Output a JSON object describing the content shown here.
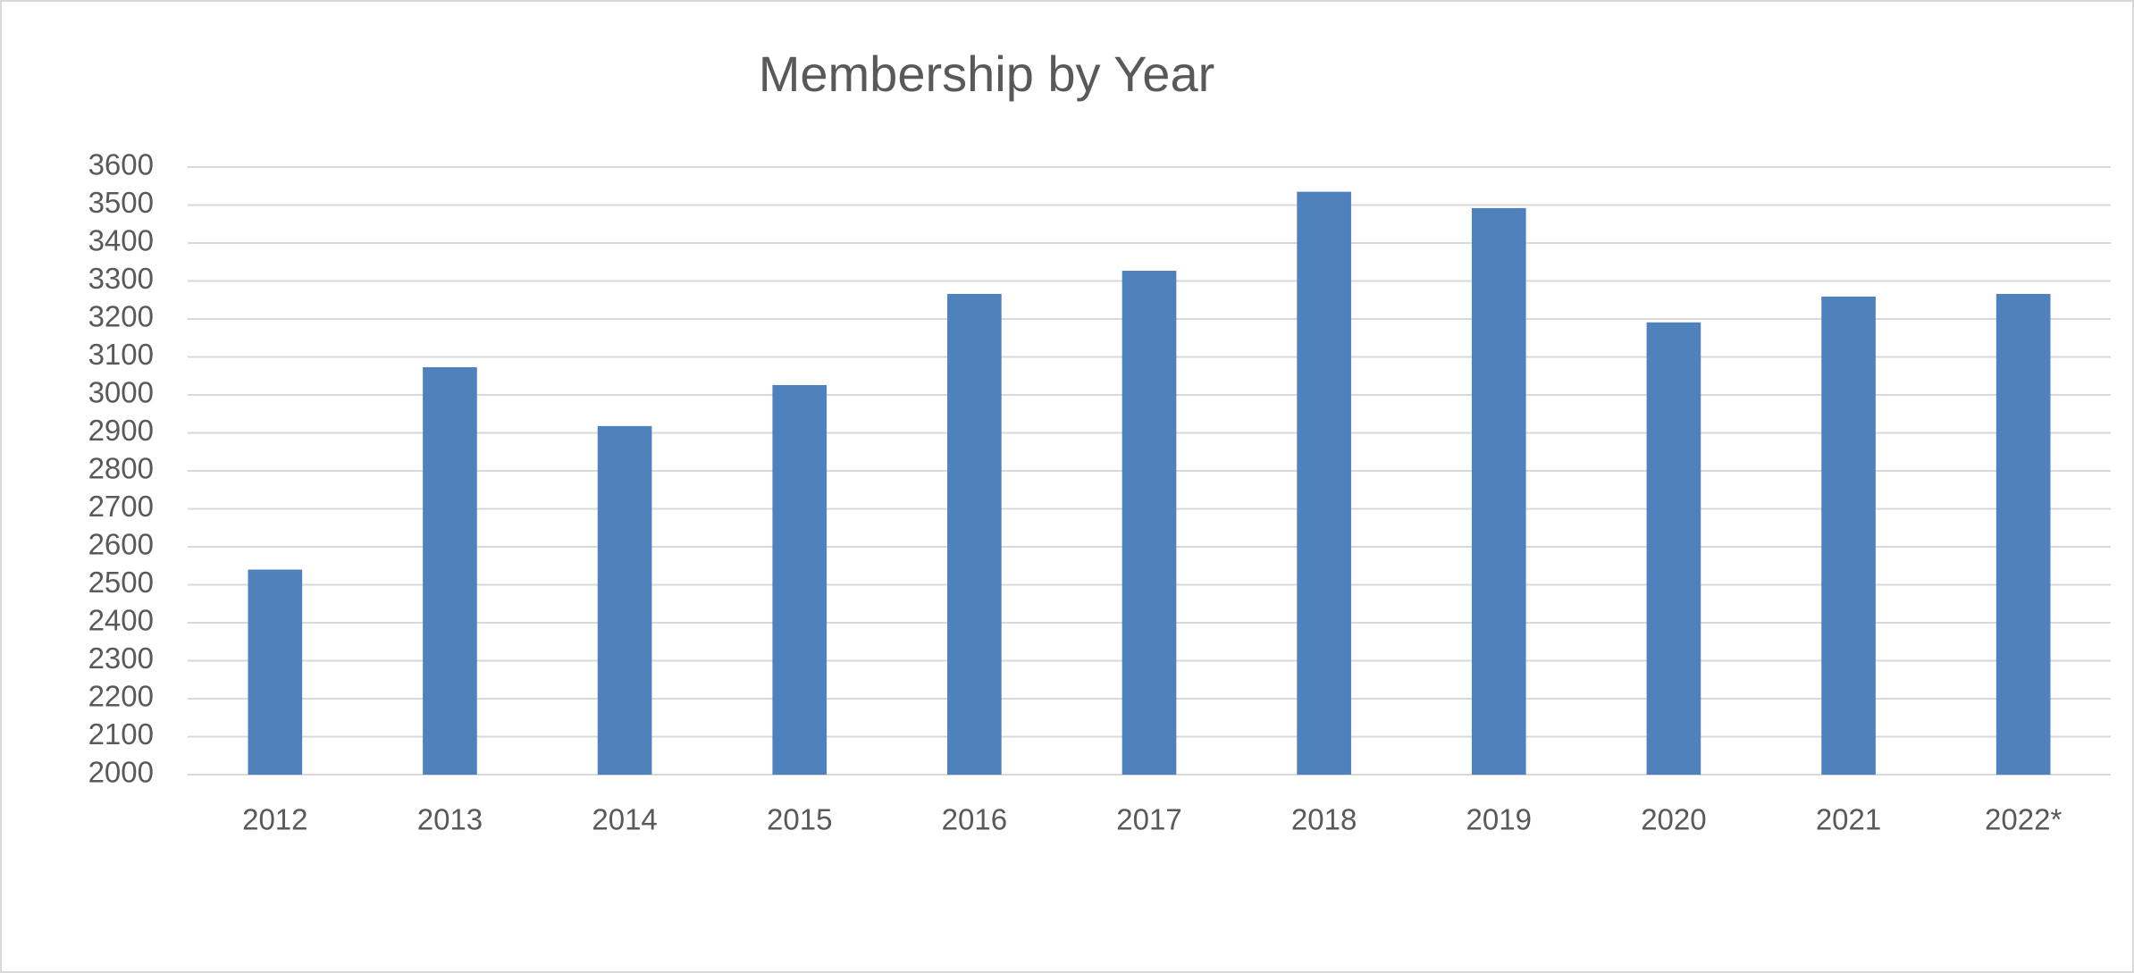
{
  "chart_data": {
    "type": "bar",
    "title": "Membership by Year",
    "categories": [
      "2012",
      "2013",
      "2014",
      "2015",
      "2016",
      "2017",
      "2018",
      "2019",
      "2020",
      "2021",
      "2022*"
    ],
    "values": [
      2540,
      3073,
      2918,
      3026,
      3266,
      3327,
      3535,
      3492,
      3191,
      3259,
      3266
    ],
    "color": "#4f81bd",
    "ylim": [
      2000,
      3600
    ],
    "yticks": [
      2000,
      2100,
      2200,
      2300,
      2400,
      2500,
      2600,
      2700,
      2800,
      2900,
      3000,
      3100,
      3200,
      3300,
      3400,
      3500,
      3600
    ],
    "grid": true
  }
}
